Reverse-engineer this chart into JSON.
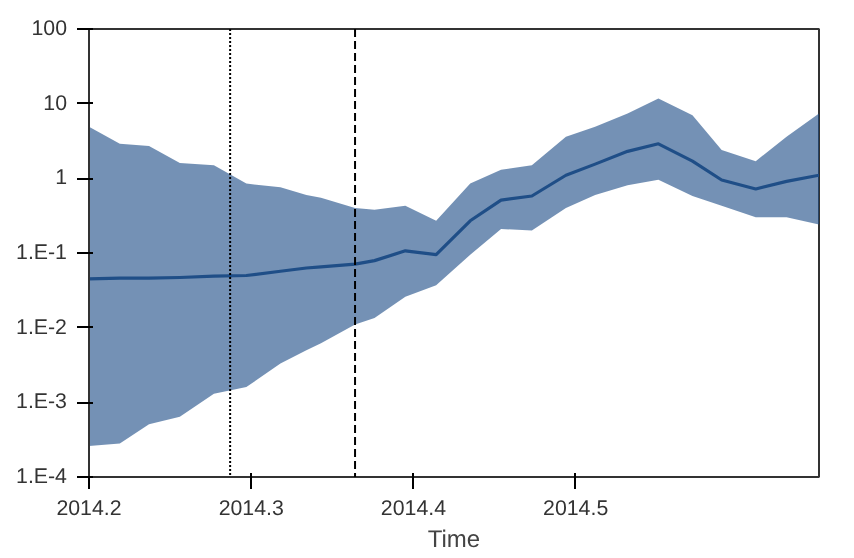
{
  "chart_data": {
    "type": "line",
    "xlabel": "Time",
    "x": [
      2014.2,
      2014.219,
      2014.237,
      2014.256,
      2014.277,
      2014.297,
      2014.318,
      2014.334,
      2014.343,
      2014.364,
      2014.376,
      2014.395,
      2014.414,
      2014.435,
      2014.454,
      2014.473,
      2014.494,
      2014.512,
      2014.532,
      2014.551,
      2014.572,
      2014.59,
      2014.611,
      2014.63,
      2014.65
    ],
    "series": [
      {
        "color": "#1f4e87",
        "values": [
          0.045,
          0.046,
          0.046,
          0.047,
          0.049,
          0.05,
          0.057,
          0.063,
          0.065,
          0.071,
          0.079,
          0.107,
          0.095,
          0.27,
          0.51,
          0.58,
          1.1,
          1.55,
          2.3,
          2.9,
          1.7,
          0.95,
          0.72,
          0.91,
          1.1
        ],
        "upper": [
          4.9,
          2.9,
          2.7,
          1.6,
          1.5,
          0.85,
          0.76,
          0.6,
          0.55,
          0.4,
          0.38,
          0.43,
          0.27,
          0.85,
          1.3,
          1.5,
          3.6,
          4.9,
          7.4,
          11.7,
          7.0,
          2.4,
          1.7,
          3.6,
          7.4
        ],
        "lower": [
          0.00026,
          0.00028,
          0.00051,
          0.00064,
          0.0013,
          0.0016,
          0.0033,
          0.005,
          0.0062,
          0.011,
          0.0135,
          0.026,
          0.037,
          0.095,
          0.21,
          0.2,
          0.4,
          0.6,
          0.81,
          0.96,
          0.58,
          0.43,
          0.3,
          0.3,
          0.24
        ]
      }
    ],
    "log": "y",
    "xlim": [
      2014.2,
      2014.65
    ],
    "ylim": [
      0.0001,
      100
    ],
    "xticks": [
      2014.2,
      2014.3,
      2014.4,
      2014.5
    ],
    "yticks": [
      {
        "value": 100,
        "label": "100"
      },
      {
        "value": 10,
        "label": "10"
      },
      {
        "value": 1,
        "label": "1"
      },
      {
        "value": 0.1,
        "label": "1.E-1"
      },
      {
        "value": 0.01,
        "label": "1.E-2"
      },
      {
        "value": 0.001,
        "label": "1.E-3"
      },
      {
        "value": 0.0001,
        "label": "1.E-4"
      }
    ],
    "ref_lines": [
      {
        "axis": "x",
        "value": 2014.287,
        "color": "#000000",
        "line_style": "dotted"
      },
      {
        "axis": "x",
        "value": 2014.364,
        "color": "#000000",
        "line_style": "dashed"
      }
    ],
    "grid": false,
    "marker": "none",
    "line_style": "solid"
  }
}
